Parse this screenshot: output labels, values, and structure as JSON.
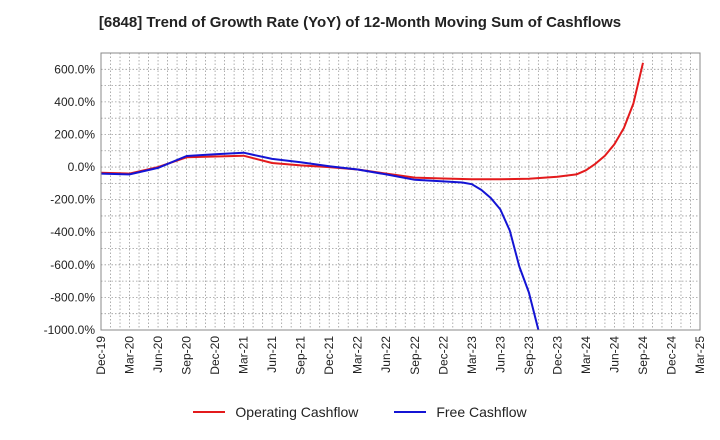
{
  "chart_data": {
    "type": "line",
    "title": "[6848]  Trend of Growth Rate (YoY) of 12-Month Moving Sum of Cashflows",
    "xlabel": "",
    "ylabel": "",
    "ylim": [
      -1000,
      700
    ],
    "yticks": [
      600,
      400,
      200,
      0,
      -200,
      -400,
      -600,
      -800,
      -1000
    ],
    "ytick_labels": [
      "600.0%",
      "400.0%",
      "200.0%",
      "0.0%",
      "-200.0%",
      "-400.0%",
      "-600.0%",
      "-800.0%",
      "-1000.0%"
    ],
    "x_start": "Dec-19",
    "x_end": "Mar-25",
    "xtick_labels": [
      "Dec-19",
      "Mar-20",
      "Jun-20",
      "Sep-20",
      "Dec-20",
      "Mar-21",
      "Jun-21",
      "Sep-21",
      "Dec-21",
      "Mar-22",
      "Jun-22",
      "Sep-22",
      "Dec-22",
      "Mar-23",
      "Jun-23",
      "Sep-23",
      "Dec-23",
      "Mar-24",
      "Jun-24",
      "Sep-24",
      "Dec-24",
      "Mar-25"
    ],
    "grid": true,
    "legend_position": "bottom",
    "series": [
      {
        "name": "Operating Cashflow",
        "color": "#e31a1c",
        "points": [
          [
            "Dec-19",
            -35
          ],
          [
            "Mar-20",
            -40
          ],
          [
            "Jun-20",
            0
          ],
          [
            "Sep-20",
            60
          ],
          [
            "Dec-20",
            65
          ],
          [
            "Mar-21",
            70
          ],
          [
            "Jun-21",
            25
          ],
          [
            "Sep-21",
            10
          ],
          [
            "Dec-21",
            0
          ],
          [
            "Mar-22",
            -15
          ],
          [
            "Jun-22",
            -40
          ],
          [
            "Sep-22",
            -65
          ],
          [
            "Dec-22",
            -70
          ],
          [
            "Mar-23",
            -75
          ],
          [
            "Jun-23",
            -75
          ],
          [
            "Sep-23",
            -72
          ],
          [
            "Dec-23",
            -60
          ],
          [
            "Feb-24",
            -45
          ],
          [
            "Mar-24",
            -20
          ],
          [
            "Apr-24",
            20
          ],
          [
            "May-24",
            70
          ],
          [
            "Jun-24",
            140
          ],
          [
            "Jul-24",
            240
          ],
          [
            "Aug-24",
            390
          ],
          [
            "Sep-24",
            640
          ]
        ]
      },
      {
        "name": "Free Cashflow",
        "color": "#1414d4",
        "points": [
          [
            "Dec-19",
            -40
          ],
          [
            "Mar-20",
            -45
          ],
          [
            "Jun-20",
            -5
          ],
          [
            "Sep-20",
            68
          ],
          [
            "Dec-20",
            78
          ],
          [
            "Mar-21",
            88
          ],
          [
            "Jun-21",
            50
          ],
          [
            "Sep-21",
            30
          ],
          [
            "Dec-21",
            5
          ],
          [
            "Mar-22",
            -15
          ],
          [
            "Jun-22",
            -45
          ],
          [
            "Sep-22",
            -78
          ],
          [
            "Dec-22",
            -88
          ],
          [
            "Feb-23",
            -95
          ],
          [
            "Mar-23",
            -105
          ],
          [
            "Apr-23",
            -140
          ],
          [
            "May-23",
            -190
          ],
          [
            "Jun-23",
            -260
          ],
          [
            "Jul-23",
            -390
          ],
          [
            "Aug-23",
            -610
          ],
          [
            "Sep-23",
            -770
          ],
          [
            "Oct-23",
            -1000
          ]
        ]
      }
    ]
  }
}
